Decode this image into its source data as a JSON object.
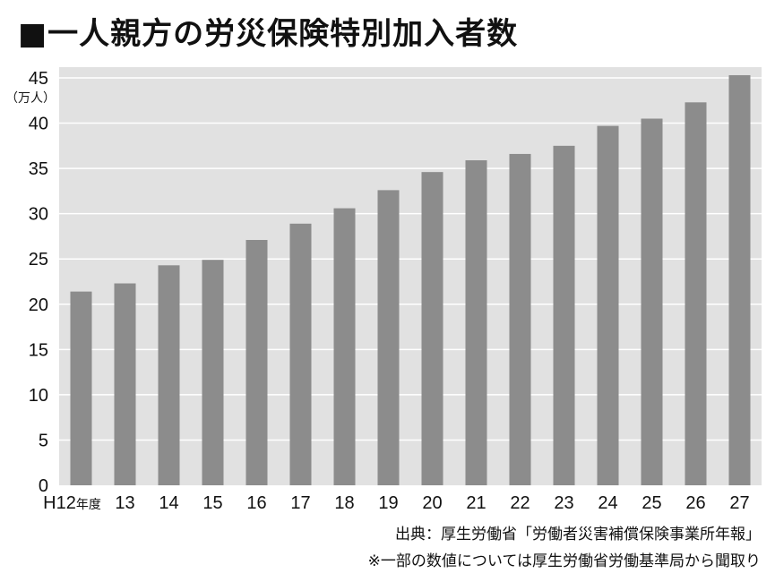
{
  "title": "■一人親方の労災保険特別加入者数",
  "chart_data": {
    "type": "bar",
    "title": "一人親方の労災保険特別加入者数",
    "unit_label": "（万人）",
    "categories": [
      "H12",
      "13",
      "14",
      "15",
      "16",
      "17",
      "18",
      "19",
      "20",
      "21",
      "22",
      "23",
      "24",
      "25",
      "26",
      "27"
    ],
    "first_category_suffix": "年度",
    "values": [
      21.4,
      22.3,
      24.3,
      24.9,
      27.1,
      28.9,
      30.6,
      32.6,
      34.6,
      35.9,
      36.6,
      37.5,
      39.7,
      40.5,
      42.3,
      45.3
    ],
    "ylim": [
      0,
      45
    ],
    "yticks": [
      0,
      5,
      10,
      15,
      20,
      25,
      30,
      35,
      40,
      45
    ],
    "grid": true,
    "colors": {
      "bar": "#8c8c8c",
      "plot_background": "#e1e1e1",
      "grid": "#ffffff"
    }
  },
  "source": "出典：厚生労働省「労働者災害補償保険事業所年報」",
  "note": "※一部の数値については厚生労働省労働基準局から聞取り"
}
